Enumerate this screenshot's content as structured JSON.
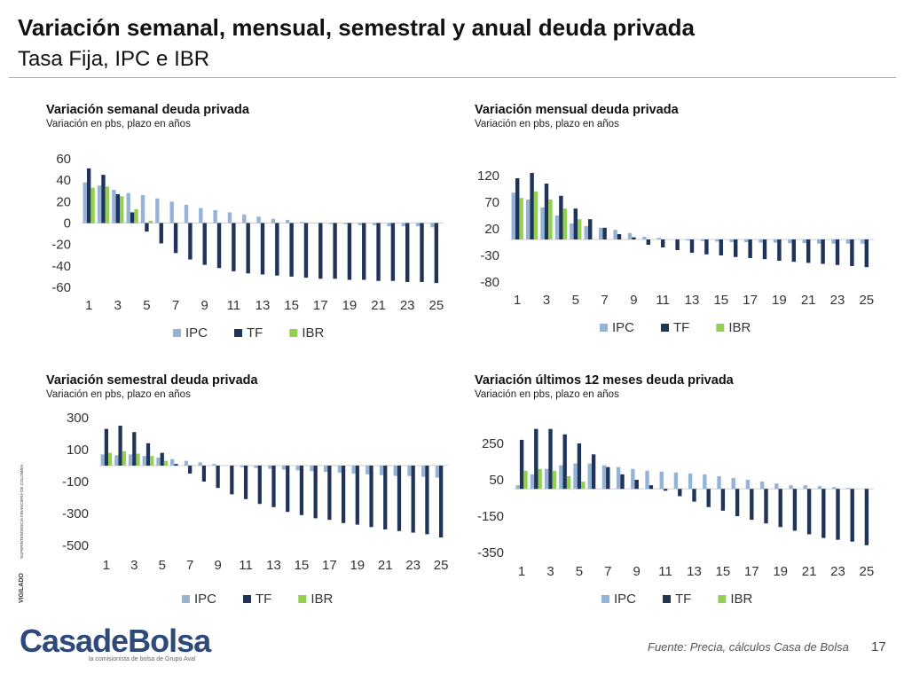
{
  "header": {
    "title": "Variación semanal, mensual, semestral y anual deuda privada",
    "subtitle": "Tasa Fija, IPC e IBR"
  },
  "side_note": {
    "vigilado": "VIGILADO",
    "entity": "SUPERINTENDENCIA FINANCIERA DE COLOMBIA"
  },
  "logo": {
    "name": "CasadeBolsa",
    "tagline": "la comisionista de bolsa de Grupo Aval"
  },
  "footer": {
    "source": "Fuente: Precia, cálculos Casa de Bolsa",
    "page": "17"
  },
  "chart_data": [
    {
      "type": "bar",
      "title": "Variación semanal deuda privada",
      "subtitle": "Variación en pbs, plazo en años",
      "categories": [
        1,
        null,
        3,
        null,
        5,
        null,
        7,
        null,
        9,
        null,
        11,
        null,
        13,
        null,
        15,
        null,
        17,
        null,
        19,
        null,
        21,
        null,
        23,
        null,
        25
      ],
      "series": [
        {
          "name": "IPC",
          "color": "#95b3d7",
          "values": [
            38,
            35,
            31,
            28,
            26,
            23,
            20,
            17,
            14,
            12,
            10,
            8,
            6,
            4,
            3,
            1,
            0,
            -1,
            -1,
            -2,
            -2,
            -3,
            -3,
            -3,
            -4
          ]
        },
        {
          "name": "TF",
          "color": "#1f3458",
          "values": [
            51,
            45,
            27,
            10,
            -8,
            -19,
            -28,
            -34,
            -39,
            -42,
            -45,
            -47,
            -48,
            -49,
            -50,
            -51,
            -52,
            -52,
            -53,
            -53,
            -54,
            -54,
            -55,
            -55,
            -56
          ]
        },
        {
          "name": "IBR",
          "color": "#92d050",
          "values": [
            33,
            34,
            25,
            13,
            2,
            null,
            null,
            null,
            null,
            null,
            null,
            null,
            null,
            null,
            null,
            null,
            null,
            null,
            null,
            null,
            null,
            null,
            null,
            null,
            null
          ]
        }
      ],
      "ylim": [
        -60,
        60
      ],
      "yticks": [
        -60,
        -40,
        -20,
        0,
        20,
        40,
        60
      ],
      "legend": "bottom"
    },
    {
      "type": "bar",
      "title": "Variación mensual deuda privada",
      "subtitle": "Variación en pbs, plazo en años",
      "categories": [
        1,
        null,
        3,
        null,
        5,
        null,
        7,
        null,
        9,
        null,
        11,
        null,
        13,
        null,
        15,
        null,
        17,
        null,
        19,
        null,
        21,
        null,
        23,
        null,
        25
      ],
      "series": [
        {
          "name": "IPC",
          "color": "#95b3d7",
          "values": [
            88,
            75,
            60,
            45,
            30,
            25,
            22,
            18,
            12,
            5,
            3,
            0,
            -2,
            -3,
            -4,
            -5,
            -5,
            -6,
            -6,
            -7,
            -7,
            -8,
            -8,
            -8,
            -8
          ]
        },
        {
          "name": "TF",
          "color": "#1f3458",
          "values": [
            115,
            125,
            105,
            82,
            58,
            38,
            22,
            10,
            4,
            -10,
            -15,
            -20,
            -25,
            -28,
            -30,
            -33,
            -35,
            -37,
            -40,
            -42,
            -44,
            -46,
            -48,
            -50,
            -52
          ]
        },
        {
          "name": "IBR",
          "color": "#92d050",
          "values": [
            78,
            90,
            75,
            58,
            38,
            null,
            null,
            null,
            null,
            null,
            null,
            null,
            null,
            null,
            null,
            null,
            null,
            null,
            null,
            null,
            null,
            null,
            null,
            null,
            null
          ]
        }
      ],
      "ylim": [
        -80,
        150
      ],
      "yticks": [
        -80,
        -30,
        20,
        70,
        120
      ],
      "legend": "bottom"
    },
    {
      "type": "bar",
      "title": "Variación semestral deuda privada",
      "subtitle": "Variación en pbs, plazo en años",
      "categories": [
        1,
        null,
        3,
        null,
        5,
        null,
        7,
        null,
        9,
        null,
        11,
        null,
        13,
        null,
        15,
        null,
        17,
        null,
        19,
        null,
        21,
        null,
        23,
        null,
        25
      ],
      "series": [
        {
          "name": "IPC",
          "color": "#95b3d7",
          "values": [
            70,
            65,
            70,
            60,
            50,
            40,
            30,
            20,
            10,
            0,
            -10,
            -15,
            -20,
            -25,
            -30,
            -35,
            -40,
            -45,
            -50,
            -55,
            -60,
            -65,
            -65,
            -70,
            -75
          ]
        },
        {
          "name": "TF",
          "color": "#1f3458",
          "values": [
            230,
            250,
            210,
            140,
            80,
            10,
            -50,
            -100,
            -140,
            -180,
            -210,
            -240,
            -260,
            -290,
            -310,
            -330,
            -340,
            -360,
            -370,
            -385,
            -400,
            -410,
            -420,
            -430,
            -450
          ]
        },
        {
          "name": "IBR",
          "color": "#92d050",
          "values": [
            80,
            90,
            75,
            60,
            30,
            null,
            null,
            null,
            null,
            null,
            null,
            null,
            null,
            null,
            null,
            null,
            null,
            null,
            null,
            null,
            null,
            null,
            null,
            null,
            null
          ]
        }
      ],
      "ylim": [
        -500,
        330
      ],
      "yticks": [
        -500,
        -300,
        -100,
        100,
        300
      ],
      "legend": "bottom"
    },
    {
      "type": "bar",
      "title": "Variación últimos 12 meses deuda privada",
      "subtitle": "Variación en pbs, plazo en años",
      "categories": [
        1,
        null,
        3,
        null,
        5,
        null,
        7,
        null,
        9,
        null,
        11,
        null,
        13,
        null,
        15,
        null,
        17,
        null,
        19,
        null,
        21,
        null,
        23,
        null,
        25
      ],
      "series": [
        {
          "name": "IPC",
          "color": "#95b3d7",
          "values": [
            20,
            80,
            110,
            130,
            140,
            140,
            130,
            120,
            110,
            100,
            95,
            90,
            85,
            80,
            70,
            60,
            50,
            40,
            30,
            20,
            20,
            15,
            10,
            5,
            0
          ]
        },
        {
          "name": "TF",
          "color": "#1f3458",
          "values": [
            270,
            330,
            330,
            300,
            250,
            190,
            120,
            80,
            50,
            20,
            -10,
            -40,
            -70,
            -100,
            -120,
            -150,
            -170,
            -190,
            -210,
            -230,
            -250,
            -270,
            -280,
            -290,
            -310
          ]
        },
        {
          "name": "IBR",
          "color": "#92d050",
          "values": [
            100,
            110,
            100,
            70,
            40,
            null,
            null,
            null,
            null,
            null,
            null,
            null,
            null,
            null,
            null,
            null,
            null,
            null,
            null,
            null,
            null,
            null,
            null,
            null,
            null
          ]
        }
      ],
      "ylim": [
        -350,
        360
      ],
      "yticks": [
        -350,
        -150,
        50,
        250
      ],
      "legend": "bottom"
    }
  ]
}
